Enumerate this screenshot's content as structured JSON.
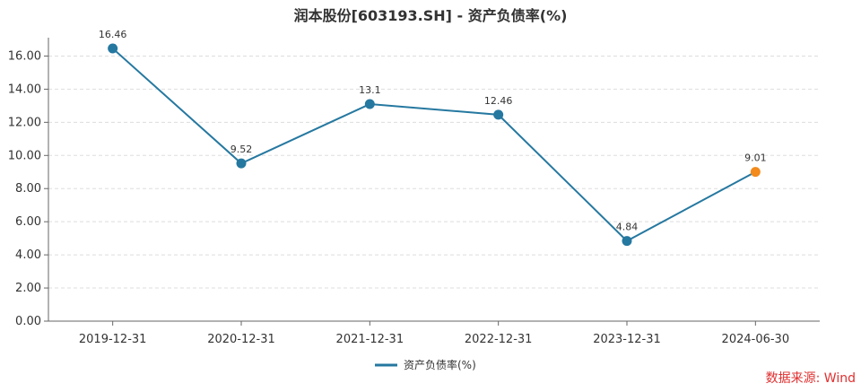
{
  "chart_data": {
    "type": "line",
    "title": "润本股份[603193.SH] - 资产负债率(%)",
    "xlabel": "",
    "ylabel": "",
    "categories": [
      "2019-12-31",
      "2020-12-31",
      "2021-12-31",
      "2022-12-31",
      "2023-12-31",
      "2024-06-30"
    ],
    "series": [
      {
        "name": "资产负债率(%)",
        "values": [
          16.46,
          9.52,
          13.1,
          12.46,
          4.84,
          9.01
        ]
      }
    ],
    "ylim": [
      0,
      17
    ],
    "yticks": [
      0,
      2,
      4,
      6,
      8,
      10,
      12,
      14,
      16
    ],
    "ytick_labels": [
      "0.00",
      "2.00",
      "4.00",
      "6.00",
      "8.00",
      "10.00",
      "12.00",
      "14.00",
      "16.00"
    ],
    "data_labels": [
      "16.46",
      "9.52",
      "13.1",
      "12.46",
      "4.84",
      "9.01"
    ],
    "grid": true,
    "legend": "bottom-center",
    "colors": {
      "series": "#2578a0",
      "highlight_point": "#f28a1c",
      "grid": "#dddddd",
      "axis": "#666666"
    }
  },
  "source_note": "数据来源: Wind"
}
